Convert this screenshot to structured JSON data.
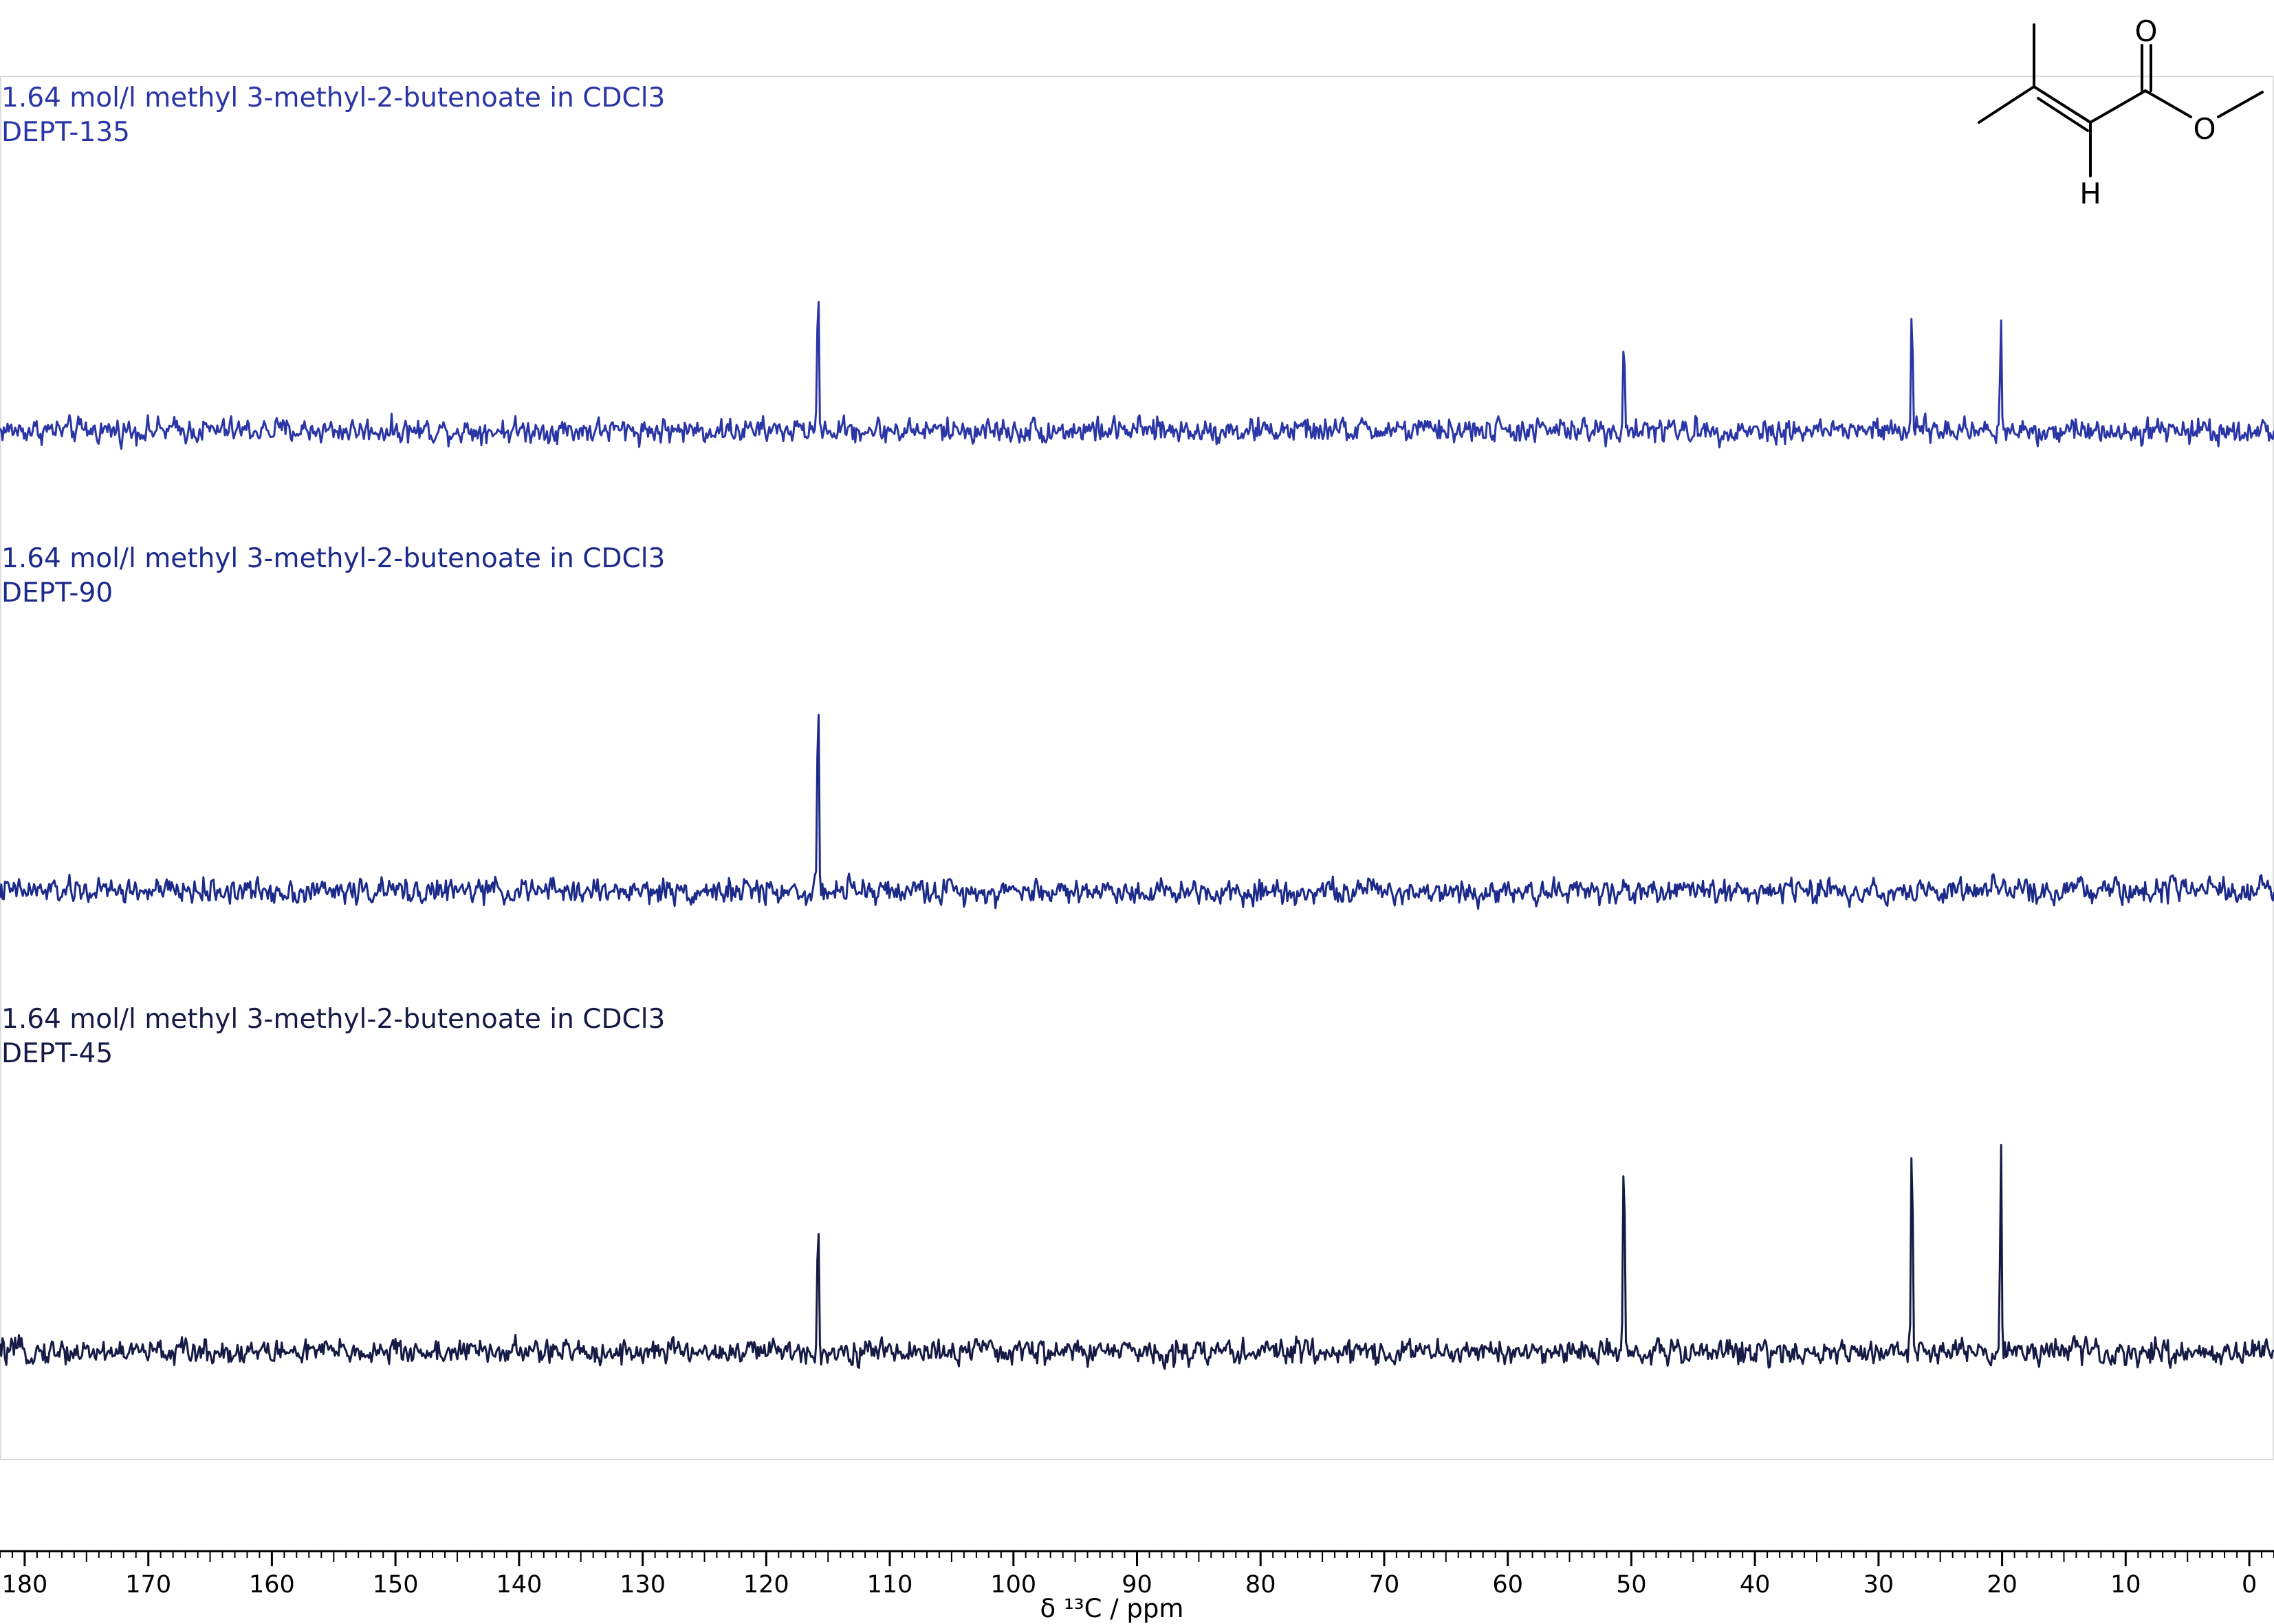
{
  "chart_data": {
    "type": "line",
    "x_unit_label": "δ ¹³C / ppm",
    "xlim": [
      182,
      -2
    ],
    "x_ticks_major": [
      180,
      170,
      160,
      150,
      140,
      130,
      120,
      110,
      100,
      90,
      80,
      70,
      60,
      50,
      40,
      30,
      20,
      10,
      0
    ],
    "x_tick_labels": [
      "180",
      "170",
      "160",
      "150",
      "140",
      "130",
      "120",
      "110",
      "100",
      "90",
      "80",
      "70",
      "60",
      "50",
      "40",
      "30",
      "20",
      "10",
      "0"
    ],
    "minor_tick_step": 1,
    "grid": false,
    "series": [
      {
        "name": "DEPT-135",
        "title_line1": "1.64 mol/l methyl 3-methyl-2-butenoate in CDCl3",
        "title_line2": "DEPT-135",
        "color": "#2b36a6",
        "peaks": [
          {
            "ppm": 115.8,
            "intensity": 0.48
          },
          {
            "ppm": 50.6,
            "intensity": 0.29
          },
          {
            "ppm": 27.3,
            "intensity": 0.36
          },
          {
            "ppm": 20.1,
            "intensity": 0.32
          }
        ],
        "noise_level": 0.06
      },
      {
        "name": "DEPT-90",
        "title_line1": "1.64 mol/l methyl 3-methyl-2-butenoate in CDCl3",
        "title_line2": "DEPT-90",
        "color": "#1c2a8a",
        "peaks": [
          {
            "ppm": 115.8,
            "intensity": 0.56
          }
        ],
        "noise_level": 0.06
      },
      {
        "name": "DEPT-45",
        "title_line1": "1.64 mol/l methyl 3-methyl-2-butenoate in CDCl3",
        "title_line2": "DEPT-45",
        "color": "#151b45",
        "peaks": [
          {
            "ppm": 115.8,
            "intensity": 0.42
          },
          {
            "ppm": 50.6,
            "intensity": 0.61
          },
          {
            "ppm": 27.3,
            "intensity": 0.66
          },
          {
            "ppm": 20.1,
            "intensity": 0.6
          }
        ],
        "noise_level": 0.06
      }
    ]
  },
  "molecule": {
    "atoms": {
      "carbonyl_o": "O",
      "ester_o": "O",
      "vinyl_h": "H"
    }
  }
}
